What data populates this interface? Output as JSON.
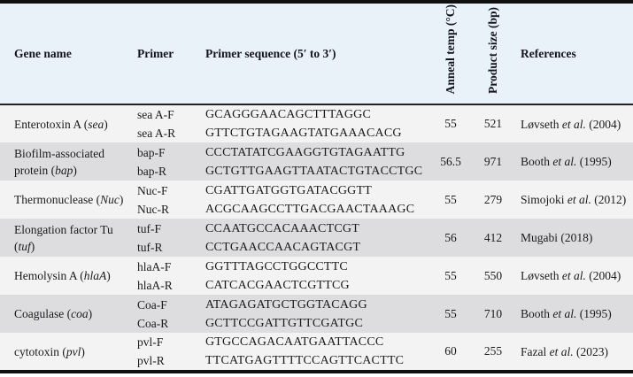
{
  "colors": {
    "border": "#101010",
    "header_bg": "#e9f1f9",
    "row_light": "#f3f3f4",
    "row_shade": "#dddddf",
    "header_text": "#14141e",
    "body_text": "#1b1b1b"
  },
  "table": {
    "headers": {
      "gene": "Gene name",
      "primer": "Primer",
      "sequence": "Primer sequence (5′ to 3′)",
      "anneal": "Anneal temp (°C)",
      "product": "Product size (bp)",
      "references": "References"
    },
    "rows": [
      {
        "gene_pre": "Enterotoxin A (",
        "gene_it": "sea",
        "gene_post": ")",
        "primers": [
          "sea A-F",
          "sea A-R"
        ],
        "seqs": [
          "GCAGGGAACAGCTTTAGGC",
          "GTTCTGTAGAAGTATGAAACACG"
        ],
        "temp": "55",
        "size": "521",
        "ref_pre": "Løvseth ",
        "ref_it": "et al.",
        "ref_post": " (2004)"
      },
      {
        "gene_pre": "Biofilm-associated protein (",
        "gene_it": "bap",
        "gene_post": ")",
        "primers": [
          "bap-F",
          "bap-R"
        ],
        "seqs": [
          "CCCTATATCGAAGGTGTAGAATTG",
          "GCTGTTGAAGTTAATACTGTACCTGC"
        ],
        "temp": "56.5",
        "size": "971",
        "ref_pre": "Booth ",
        "ref_it": "et al.",
        "ref_post": " (1995)"
      },
      {
        "gene_pre": "Thermonuclease (",
        "gene_it": "Nuc",
        "gene_post": ")",
        "primers": [
          "Nuc-F",
          "Nuc-R"
        ],
        "seqs": [
          "CGATTGATGGTGATACGGTT",
          "ACGCAAGCCTTGACGAACTAAAGC"
        ],
        "temp": "55",
        "size": "279",
        "ref_pre": "Simojoki ",
        "ref_it": "et al.",
        "ref_post": " (2012)"
      },
      {
        "gene_pre": "Elongation factor Tu (",
        "gene_it": "tuf",
        "gene_post": ")",
        "primers": [
          "tuf-F",
          "tuf-R"
        ],
        "seqs": [
          "CCAATGCCACAAACTCGT",
          "CCTGAACCAACAGTACGT"
        ],
        "temp": "56",
        "size": "412",
        "ref_pre": "Mugabi (2018)",
        "ref_it": "",
        "ref_post": ""
      },
      {
        "gene_pre": "Hemolysin A (",
        "gene_it": "hlaA",
        "gene_post": ")",
        "primers": [
          "hlaA-F",
          "hlaA-R"
        ],
        "seqs": [
          "GGTTTAGCCTGGCCTTC",
          "CATCACGAACTCGTTCG"
        ],
        "temp": "55",
        "size": "550",
        "ref_pre": "Løvseth ",
        "ref_it": "et al.",
        "ref_post": " (2004)"
      },
      {
        "gene_pre": "Coagulase (",
        "gene_it": "coa",
        "gene_post": ")",
        "primers": [
          "Coa-F",
          "Coa-R"
        ],
        "seqs": [
          "ATAGAGATGCTGGTACAGG",
          "GCTTCCGATTGTTCGATGC"
        ],
        "temp": "55",
        "size": "710",
        "ref_pre": "Booth ",
        "ref_it": "et al.",
        "ref_post": " (1995)"
      },
      {
        "gene_pre": "cytotoxin (",
        "gene_it": "pvl",
        "gene_post": ")",
        "primers": [
          "pvl-F",
          "pvl-R"
        ],
        "seqs": [
          "GTGCCAGACAATGAATTACCC",
          "TTCATGAGTTTTCCAGTTCACTTC"
        ],
        "temp": "60",
        "size": "255",
        "ref_pre": "Fazal ",
        "ref_it": "et al.",
        "ref_post": " (2023)"
      }
    ]
  }
}
